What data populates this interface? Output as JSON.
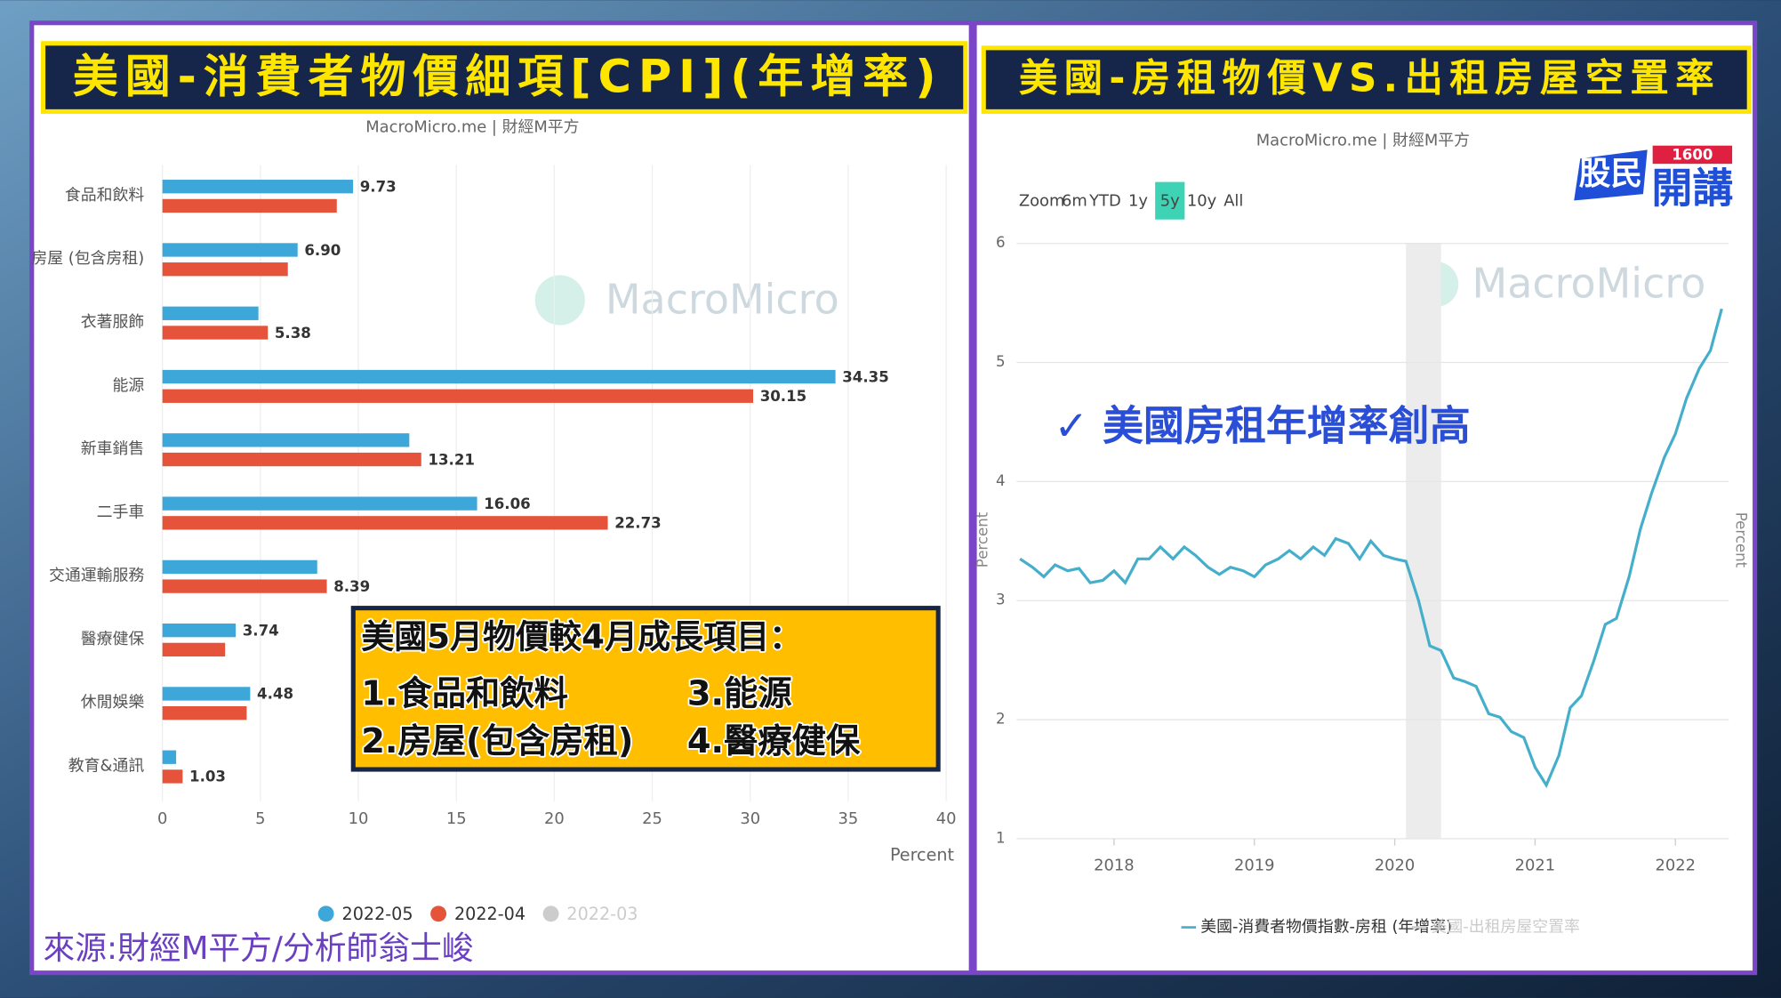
{
  "chart_data": [
    {
      "type": "bar",
      "orientation": "horizontal",
      "title": "美國-消費者物價細項[CPI](年增率)",
      "subtitle": "MacroMicro.me | 財經M平方",
      "watermark": "MacroMicro",
      "categories": [
        "食品和飲料",
        "房屋 (包含房租)",
        "衣著服飾",
        "能源",
        "新車銷售",
        "二手車",
        "交通運輸服務",
        "醫療健保",
        "休閒娛樂",
        "教育&通訊"
      ],
      "series": [
        {
          "name": "2022-05",
          "color": "#3ea7d9",
          "values": [
            9.73,
            6.9,
            4.9,
            34.35,
            12.6,
            16.06,
            7.9,
            3.74,
            4.48,
            0.7
          ],
          "value_labels": [
            "9.73",
            "6.90",
            null,
            "34.35",
            null,
            "16.06",
            null,
            "3.74",
            "4.48",
            null
          ]
        },
        {
          "name": "2022-04",
          "color": "#e5543a",
          "values": [
            8.9,
            6.4,
            5.38,
            30.15,
            13.21,
            22.73,
            8.39,
            3.2,
            4.3,
            1.03
          ],
          "value_labels": [
            null,
            null,
            "5.38",
            "30.15",
            "13.21",
            "22.73",
            "8.39",
            null,
            null,
            "1.03"
          ]
        }
      ],
      "hidden_series": [
        {
          "name": "2022-03",
          "color": "#cccccc"
        }
      ],
      "xlabel": "Percent",
      "xlim": [
        0,
        40
      ],
      "xticks": [
        0,
        5,
        10,
        15,
        20,
        25,
        30,
        35,
        40
      ],
      "grid": true
    },
    {
      "type": "line",
      "title": "美國-房租物價VS.出租房屋空置率",
      "subtitle": "MacroMicro.me | 財經M平方",
      "watermark": "MacroMicro",
      "zoom_buttons": [
        "Zoom",
        "6m",
        "YTD",
        "1y",
        "5y",
        "10y",
        "All"
      ],
      "zoom_selected": 4,
      "annotation": "✓ 美國房租年增率創高",
      "ylabel": "Percent",
      "y2label": "Percent",
      "x": [
        2017.33,
        2017.42,
        2017.5,
        2017.58,
        2017.67,
        2017.75,
        2017.83,
        2017.92,
        2018.0,
        2018.08,
        2018.17,
        2018.25,
        2018.33,
        2018.42,
        2018.5,
        2018.58,
        2018.67,
        2018.75,
        2018.83,
        2018.92,
        2019.0,
        2019.08,
        2019.17,
        2019.25,
        2019.33,
        2019.42,
        2019.5,
        2019.58,
        2019.67,
        2019.75,
        2019.83,
        2019.92,
        2020.0,
        2020.08,
        2020.17,
        2020.25,
        2020.33,
        2020.42,
        2020.5,
        2020.58,
        2020.67,
        2020.75,
        2020.83,
        2020.92,
        2021.0,
        2021.08,
        2021.17,
        2021.25,
        2021.33,
        2021.42,
        2021.5,
        2021.58,
        2021.67,
        2021.75,
        2021.83,
        2021.92,
        2022.0,
        2022.08,
        2022.17,
        2022.25,
        2022.33
      ],
      "series": [
        {
          "name": "美國-消費者物價指數-房租 (年增率)",
          "color": "#45afcb",
          "values": [
            3.35,
            3.28,
            3.2,
            3.3,
            3.25,
            3.27,
            3.15,
            3.17,
            3.25,
            3.15,
            3.35,
            3.35,
            3.45,
            3.35,
            3.45,
            3.38,
            3.28,
            3.22,
            3.28,
            3.25,
            3.2,
            3.3,
            3.35,
            3.42,
            3.35,
            3.45,
            3.38,
            3.52,
            3.48,
            3.35,
            3.5,
            3.38,
            3.35,
            3.33,
            3.0,
            2.62,
            2.58,
            2.35,
            2.32,
            2.28,
            2.05,
            2.02,
            1.9,
            1.85,
            1.6,
            1.45,
            1.7,
            2.1,
            2.2,
            2.5,
            2.8,
            2.85,
            3.2,
            3.6,
            3.9,
            4.2,
            4.4,
            4.7,
            4.95,
            5.1,
            5.45
          ]
        }
      ],
      "hidden_series": [
        {
          "name": "美國-出租房屋空置率",
          "color": "#cccccc"
        }
      ],
      "highlight_x": [
        2020.08,
        2020.33
      ],
      "xlim": [
        2017.33,
        2022.38
      ],
      "xticks": [
        2018,
        2019,
        2020,
        2021,
        2022
      ],
      "ylim": [
        1,
        6
      ],
      "yticks": [
        1,
        2,
        3,
        4,
        5,
        6
      ],
      "grid": true
    }
  ],
  "callout": {
    "title": "美國5月物價較4月成長項目：",
    "items": [
      "1.食品和飲料",
      "2.房屋(包含房租)",
      "3.能源",
      "4.醫療健保"
    ]
  },
  "source": "來源:財經M平方/分析師翁士峻",
  "logo": {
    "text1": "股民",
    "text2": "開講",
    "number": "1600"
  }
}
